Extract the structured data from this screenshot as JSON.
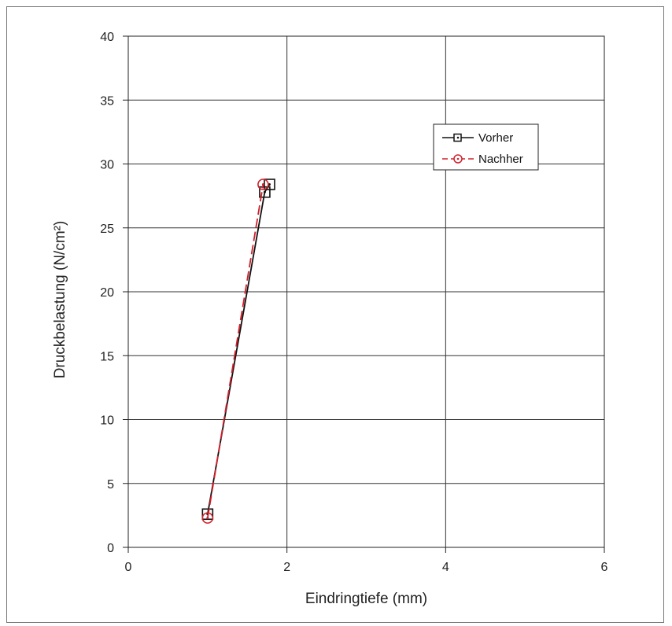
{
  "chart_data": {
    "type": "line",
    "title": "",
    "xlabel": "Eindringtiefe (mm)",
    "ylabel": "Druckbelastung (N/cm²)",
    "xlim": [
      0,
      6
    ],
    "ylim": [
      0,
      40
    ],
    "xticks": [
      0,
      2,
      4,
      6
    ],
    "yticks": [
      0,
      5,
      10,
      15,
      20,
      25,
      30,
      35,
      40
    ],
    "grid": true,
    "legend_position": "upper-right",
    "series": [
      {
        "name": "Vorher",
        "color": "#111111",
        "marker": "square-dot",
        "line_style": "solid",
        "x": [
          1.0,
          1.72,
          1.78
        ],
        "y": [
          2.6,
          27.8,
          28.4
        ]
      },
      {
        "name": "Nachher",
        "color": "#d0202a",
        "marker": "circle-dot",
        "line_style": "dashed",
        "x": [
          1.0,
          1.7
        ],
        "y": [
          2.3,
          28.4
        ]
      }
    ]
  }
}
